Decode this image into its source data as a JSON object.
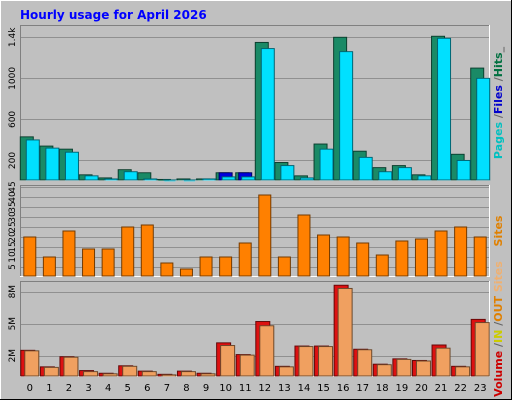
{
  "chart_data": [
    {
      "type": "bar",
      "title": "Hourly usage for April 2026",
      "categories": [
        "0",
        "1",
        "2",
        "3",
        "4",
        "5",
        "6",
        "7",
        "8",
        "9",
        "10",
        "11",
        "12",
        "13",
        "14",
        "15",
        "16",
        "17",
        "18",
        "19",
        "20",
        "21",
        "22",
        "23"
      ],
      "ylim": [
        0,
        1520
      ],
      "yticks": [
        {
          "value": 200,
          "label": "200"
        },
        {
          "value": 600,
          "label": "600"
        },
        {
          "value": 1000,
          "label": "1000"
        },
        {
          "value": 1400,
          "label": "1.4k"
        }
      ],
      "side_label": [
        {
          "text": "Pages",
          "color": "#00c0c0"
        },
        {
          "text": " /",
          "color": "#666666"
        },
        {
          "text": "Files",
          "color": "#0000cc"
        },
        {
          "text": " /",
          "color": "#666666"
        },
        {
          "text": "Hits",
          "color": "#007040"
        },
        {
          "text": "_",
          "color": "#666666"
        }
      ],
      "series": [
        {
          "name": "Hits",
          "color": "#1a8a66",
          "values": [
            430,
            340,
            310,
            60,
            30,
            110,
            80,
            15,
            20,
            20,
            80,
            80,
            1350,
            180,
            50,
            360,
            1400,
            290,
            130,
            150,
            60,
            1410,
            260,
            1100
          ]
        },
        {
          "name": "Files",
          "color": "#0000dd",
          "values": [
            0,
            0,
            0,
            0,
            0,
            0,
            0,
            0,
            0,
            0,
            80,
            80,
            0,
            0,
            0,
            0,
            0,
            0,
            0,
            0,
            0,
            0,
            0,
            0
          ]
        },
        {
          "name": "Pages",
          "color": "#00e0ff",
          "values": [
            400,
            320,
            280,
            50,
            20,
            90,
            20,
            10,
            10,
            20,
            40,
            40,
            1290,
            150,
            30,
            310,
            1260,
            230,
            90,
            130,
            50,
            1390,
            200,
            1000
          ]
        }
      ]
    },
    {
      "type": "bar",
      "categories": [
        "0",
        "1",
        "2",
        "3",
        "4",
        "5",
        "6",
        "7",
        "8",
        "9",
        "10",
        "11",
        "12",
        "13",
        "14",
        "15",
        "16",
        "17",
        "18",
        "19",
        "20",
        "21",
        "22",
        "23"
      ],
      "ylim": [
        0,
        46
      ],
      "yticks": [
        {
          "value": 5,
          "label": "5"
        },
        {
          "value": 10,
          "label": "10"
        },
        {
          "value": 15,
          "label": "15"
        },
        {
          "value": 20,
          "label": "20"
        },
        {
          "value": 25,
          "label": "25"
        },
        {
          "value": 30,
          "label": "30"
        },
        {
          "value": 35,
          "label": "35"
        },
        {
          "value": 40,
          "label": "40"
        },
        {
          "value": 45,
          "label": "45"
        }
      ],
      "side_label": [
        {
          "text": "Sites",
          "color": "#e08000"
        }
      ],
      "series": [
        {
          "name": "Sites",
          "color": "#ff8000",
          "values": [
            20,
            10,
            23,
            14,
            14,
            25,
            26,
            7,
            4,
            10,
            10,
            17,
            41,
            10,
            31,
            21,
            20,
            17,
            11,
            18,
            19,
            23,
            25,
            20
          ]
        }
      ]
    },
    {
      "type": "bar",
      "categories": [
        "0",
        "1",
        "2",
        "3",
        "4",
        "5",
        "6",
        "7",
        "8",
        "9",
        "10",
        "11",
        "12",
        "13",
        "14",
        "15",
        "16",
        "17",
        "18",
        "19",
        "20",
        "21",
        "22",
        "23"
      ],
      "ylim": [
        0,
        9000
      ],
      "yticks": [
        {
          "value": 2000,
          "label": "2M"
        },
        {
          "value": 5000,
          "label": "5M"
        },
        {
          "value": 8000,
          "label": "8M"
        }
      ],
      "side_label": [
        {
          "text": "Volume",
          "color": "#cc0000"
        },
        {
          "text": " /",
          "color": "#666666"
        },
        {
          "text": "IN",
          "color": "#cccc00"
        },
        {
          "text": " /",
          "color": "#666666"
        },
        {
          "text": "OUT",
          "color": "#e08000"
        },
        {
          "text": " Sites",
          "color": "#f0b070"
        }
      ],
      "series": [
        {
          "name": "Volume",
          "color": "#dd1111",
          "values": [
            2500,
            950,
            1900,
            600,
            350,
            1050,
            550,
            250,
            550,
            350,
            3200,
            2100,
            5200,
            1000,
            2900,
            2900,
            8600,
            2600,
            1200,
            1700,
            1550,
            3000,
            1000,
            5400
          ]
        },
        {
          "name": "OUT",
          "color": "#f0a060",
          "values": [
            2450,
            900,
            1850,
            500,
            300,
            1000,
            500,
            200,
            500,
            300,
            2950,
            2050,
            4800,
            950,
            2850,
            2850,
            8300,
            2550,
            1150,
            1650,
            1500,
            2700,
            950,
            5100
          ]
        }
      ]
    }
  ],
  "x_labels": [
    "0",
    "1",
    "2",
    "3",
    "4",
    "5",
    "6",
    "7",
    "8",
    "9",
    "10",
    "11",
    "12",
    "13",
    "14",
    "15",
    "16",
    "17",
    "18",
    "19",
    "20",
    "21",
    "22",
    "23"
  ]
}
